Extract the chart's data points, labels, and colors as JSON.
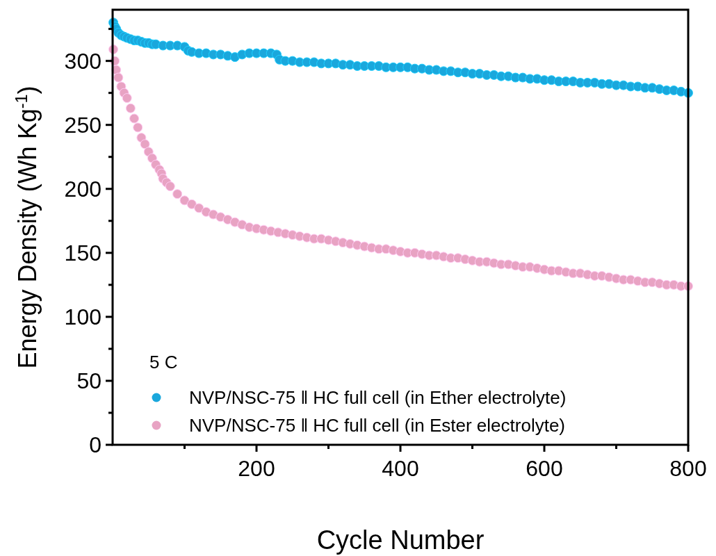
{
  "chart_data": {
    "type": "scatter",
    "xlabel": "Cycle Number",
    "ylabel": "Energy Density (Wh Kg$^{-1}$)",
    "legend_title": "5 C",
    "legend": "bottom",
    "marker": "circle",
    "xlim": [
      0,
      800
    ],
    "xticks": [
      {
        "value": 100,
        "label": null
      },
      200,
      {
        "value": 300,
        "label": null
      },
      400,
      {
        "value": 500,
        "label": null
      },
      600,
      {
        "value": 700,
        "label": null
      },
      800
    ],
    "ylim": [
      0,
      340
    ],
    "yticks": [
      0,
      {
        "value": 25,
        "label": null
      },
      50,
      {
        "value": 75,
        "label": null
      },
      100,
      {
        "value": 125,
        "label": null
      },
      150,
      {
        "value": 175,
        "label": null
      },
      200,
      {
        "value": 225,
        "label": null
      },
      250,
      {
        "value": 275,
        "label": null
      },
      300,
      {
        "value": 325,
        "label": null
      }
    ],
    "series": [
      {
        "name": "NVP/NSC-75 ‖ HC full cell (in Ether electrolyte)",
        "color": "#1aa7dc",
        "x": [
          1,
          3,
          5,
          8,
          12,
          16,
          20,
          25,
          30,
          35,
          40,
          45,
          50,
          55,
          60,
          70,
          80,
          90,
          100,
          105,
          110,
          120,
          130,
          140,
          150,
          160,
          170,
          180,
          190,
          200,
          210,
          220,
          228,
          232,
          240,
          250,
          260,
          270,
          280,
          290,
          300,
          310,
          320,
          330,
          340,
          350,
          360,
          370,
          380,
          390,
          400,
          410,
          420,
          430,
          440,
          450,
          460,
          470,
          480,
          490,
          500,
          510,
          520,
          530,
          540,
          550,
          560,
          570,
          580,
          590,
          600,
          610,
          620,
          630,
          640,
          650,
          660,
          670,
          680,
          690,
          700,
          710,
          720,
          730,
          740,
          750,
          760,
          770,
          780,
          790,
          800
        ],
        "values": [
          330,
          327,
          325,
          322,
          320,
          319,
          318,
          317,
          316,
          316,
          315,
          314,
          314,
          313,
          313,
          312,
          312,
          312,
          311,
          308,
          307,
          306,
          306,
          305,
          305,
          304,
          303,
          305,
          306,
          306,
          306,
          306,
          305,
          301,
          300,
          300,
          299,
          299,
          299,
          298,
          298,
          298,
          297,
          297,
          296,
          296,
          296,
          296,
          295,
          295,
          295,
          295,
          294,
          294,
          293,
          293,
          292,
          292,
          291,
          291,
          290,
          290,
          289,
          289,
          288,
          288,
          287,
          287,
          286,
          286,
          285,
          285,
          284,
          284,
          284,
          283,
          283,
          283,
          282,
          282,
          281,
          281,
          280,
          280,
          279,
          279,
          278,
          277,
          277,
          276,
          275
        ]
      },
      {
        "name": "NVP/NSC-75 ‖ HC full cell (in Ester electrolyte)",
        "color": "#e8a3c3",
        "x": [
          1,
          3,
          5,
          8,
          12,
          16,
          20,
          25,
          30,
          35,
          40,
          45,
          50,
          55,
          60,
          65,
          68,
          70,
          75,
          80,
          90,
          100,
          110,
          120,
          130,
          140,
          150,
          160,
          170,
          180,
          190,
          200,
          210,
          220,
          230,
          240,
          250,
          260,
          270,
          280,
          290,
          300,
          310,
          320,
          330,
          340,
          350,
          360,
          370,
          380,
          390,
          400,
          410,
          420,
          430,
          440,
          450,
          460,
          470,
          480,
          490,
          500,
          510,
          520,
          530,
          540,
          550,
          560,
          570,
          580,
          590,
          600,
          610,
          620,
          630,
          640,
          650,
          660,
          670,
          680,
          690,
          700,
          710,
          720,
          730,
          740,
          750,
          760,
          770,
          780,
          790,
          800
        ],
        "values": [
          309,
          300,
          293,
          287,
          280,
          275,
          271,
          263,
          255,
          248,
          240,
          235,
          229,
          224,
          219,
          215,
          212,
          208,
          205,
          202,
          196,
          191,
          188,
          185,
          182,
          180,
          178,
          176,
          174,
          172,
          170,
          169,
          168,
          167,
          166,
          165,
          164,
          163,
          162,
          161,
          161,
          160,
          159,
          158,
          157,
          156,
          155,
          154,
          153,
          153,
          152,
          151,
          150,
          150,
          149,
          148,
          148,
          147,
          146,
          146,
          145,
          144,
          143,
          143,
          142,
          141,
          141,
          140,
          139,
          139,
          138,
          137,
          136,
          136,
          135,
          134,
          134,
          133,
          132,
          132,
          131,
          130,
          129,
          129,
          128,
          127,
          127,
          126,
          125,
          125,
          124,
          124
        ]
      }
    ]
  }
}
